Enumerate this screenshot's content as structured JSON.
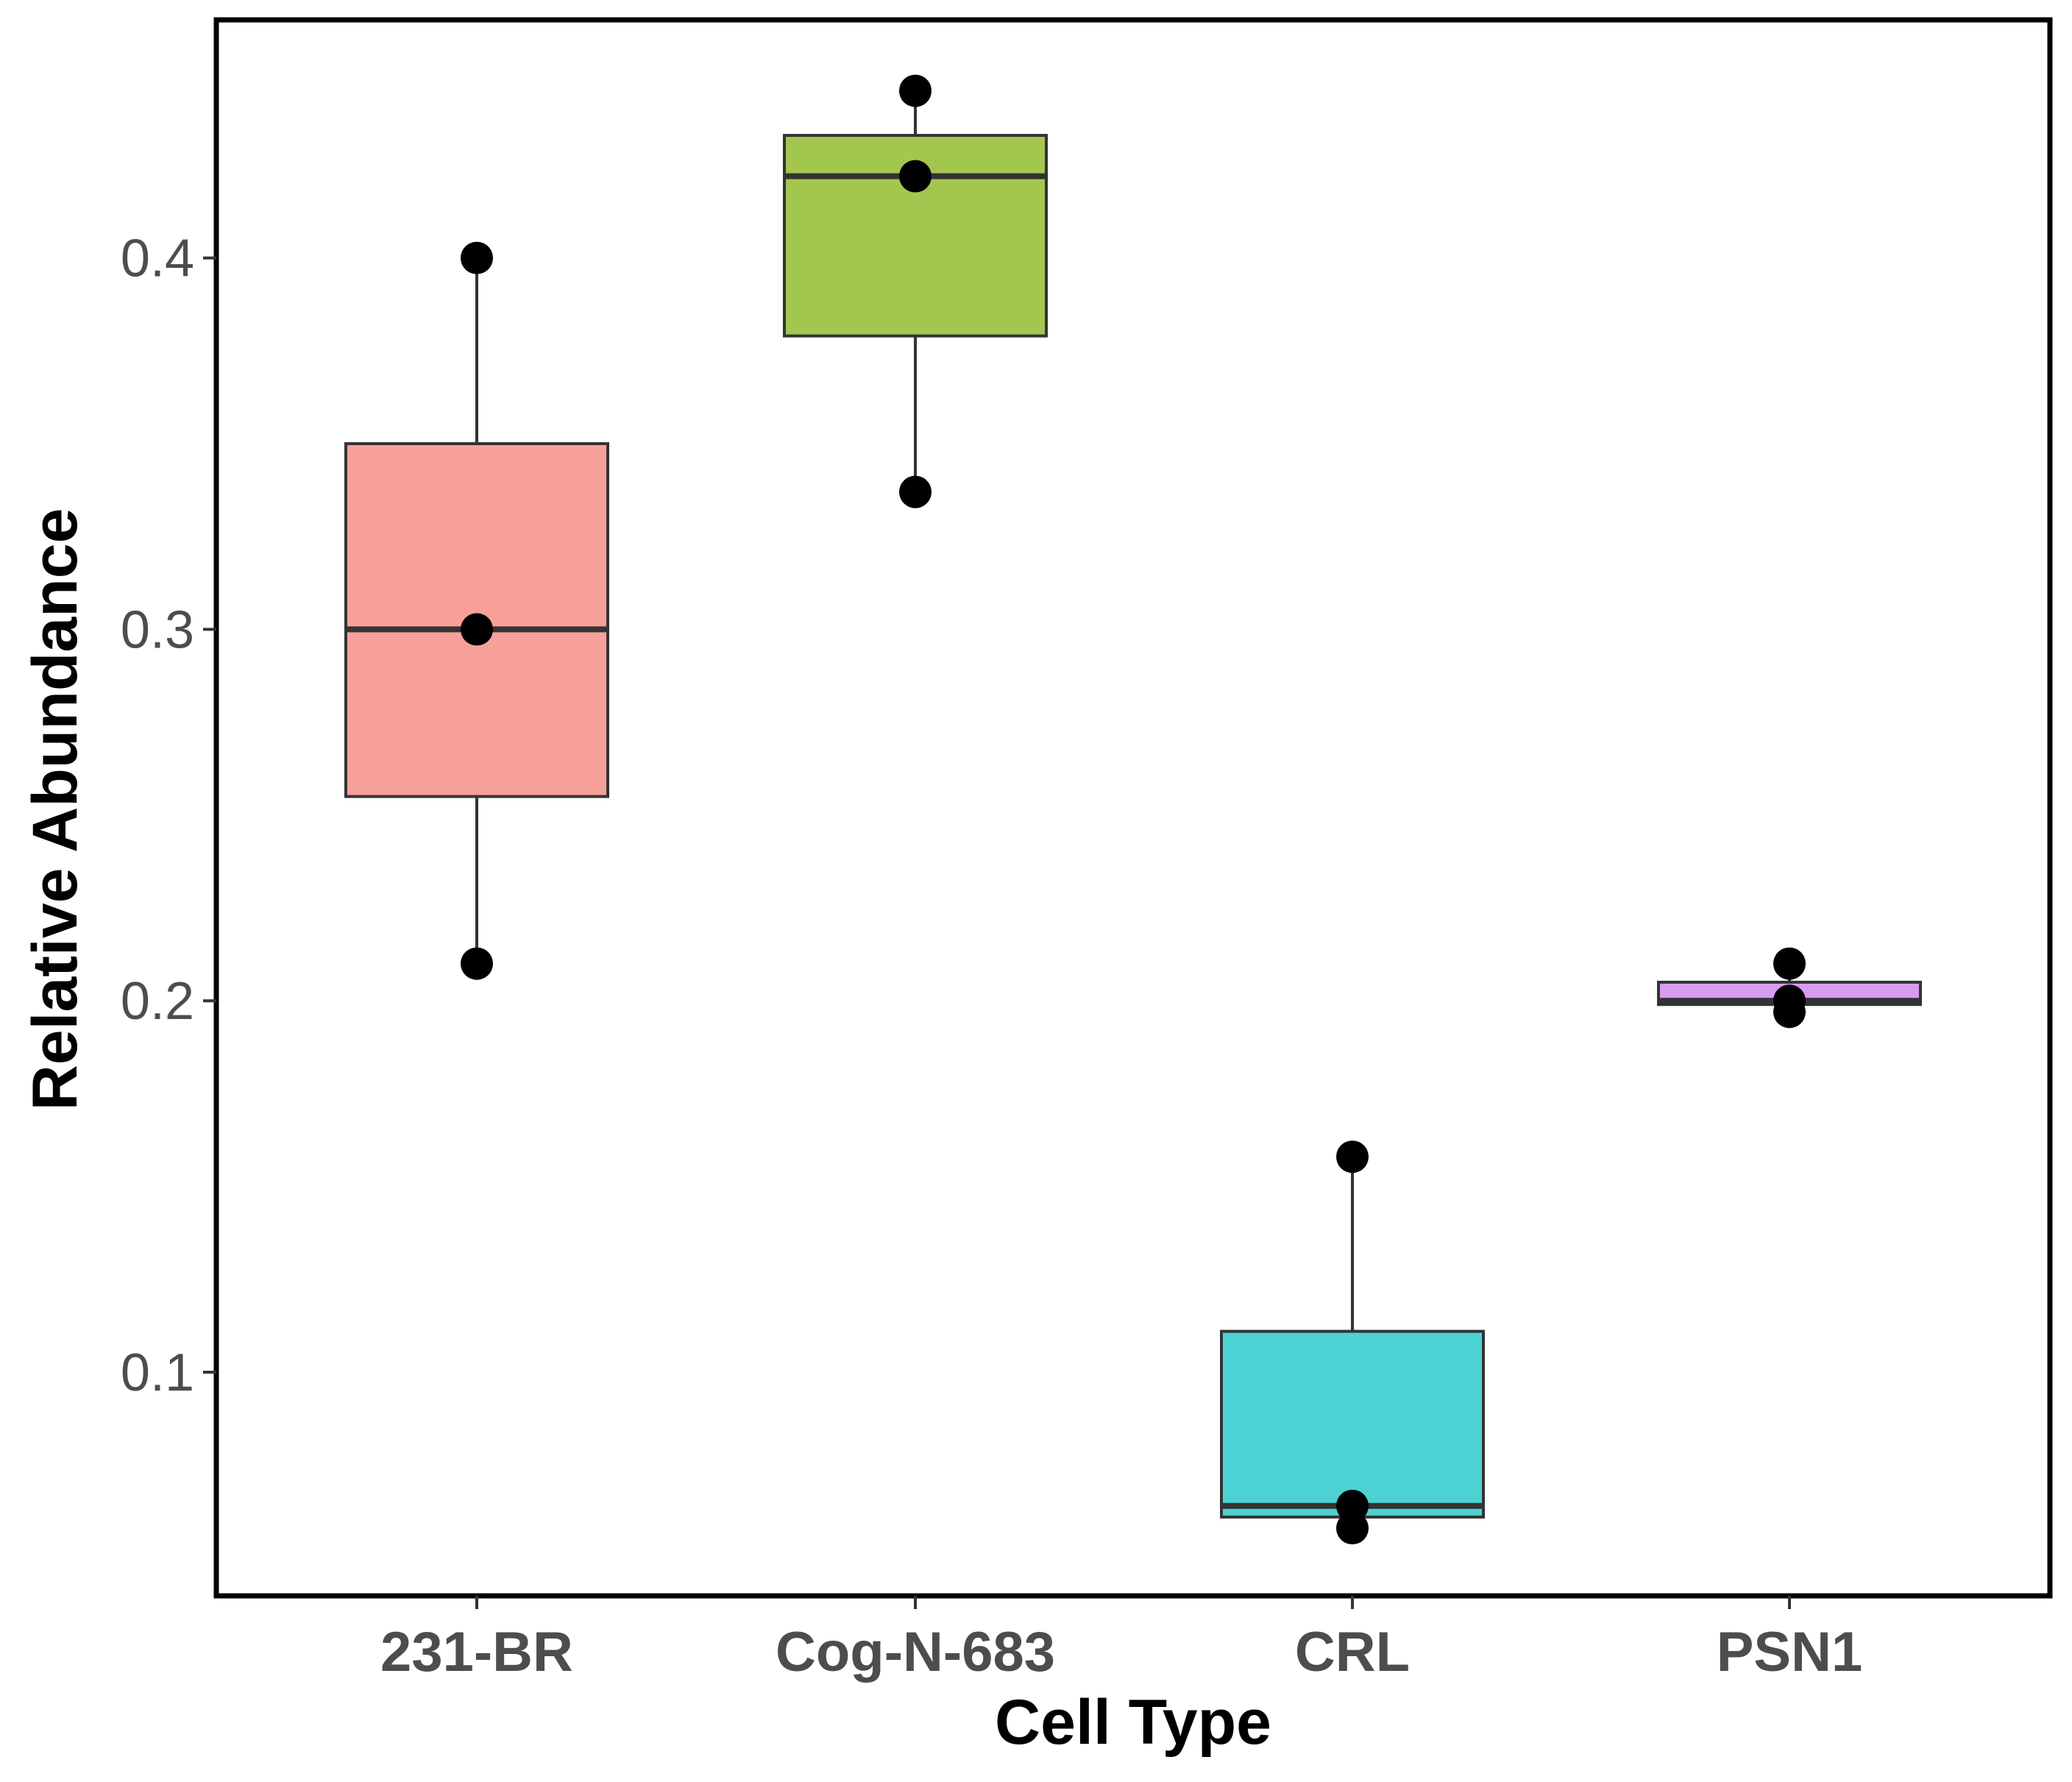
{
  "chart_data": {
    "type": "boxplot",
    "title": "",
    "xlabel": "Cell Type",
    "ylabel": "Relative Abundance",
    "ylim": [
      0.05,
      0.455
    ],
    "yticks": [
      0.1,
      0.2,
      0.3,
      0.4
    ],
    "ytick_labels": [
      "0.1",
      "0.2",
      "0.3",
      "0.4"
    ],
    "grid": false,
    "legend": "none",
    "categories": [
      "231-BR",
      "Cog-N-683",
      "CRL",
      "PSN1"
    ],
    "boxes": [
      {
        "category": "231-BR",
        "color": "#F8A09A",
        "q1": 0.255,
        "median": 0.3,
        "q3": 0.35,
        "whisker_low": 0.21,
        "whisker_high": 0.4,
        "points": [
          0.4,
          0.3,
          0.21
        ]
      },
      {
        "category": "Cog-N-683",
        "color": "#A3C74E",
        "q1": 0.379,
        "median": 0.422,
        "q3": 0.433,
        "whisker_low": 0.337,
        "whisker_high": 0.445,
        "points": [
          0.445,
          0.422,
          0.337
        ]
      },
      {
        "category": "CRL",
        "color": "#4DD2D4",
        "q1": 0.061,
        "median": 0.064,
        "q3": 0.111,
        "whisker_low": 0.058,
        "whisker_high": 0.158,
        "points": [
          0.158,
          0.064,
          0.058
        ]
      },
      {
        "category": "PSN1",
        "color": "#D89BF2",
        "q1": 0.199,
        "median": 0.2,
        "q3": 0.205,
        "whisker_low": 0.197,
        "whisker_high": 0.21,
        "points": [
          0.21,
          0.2,
          0.197
        ]
      }
    ]
  }
}
